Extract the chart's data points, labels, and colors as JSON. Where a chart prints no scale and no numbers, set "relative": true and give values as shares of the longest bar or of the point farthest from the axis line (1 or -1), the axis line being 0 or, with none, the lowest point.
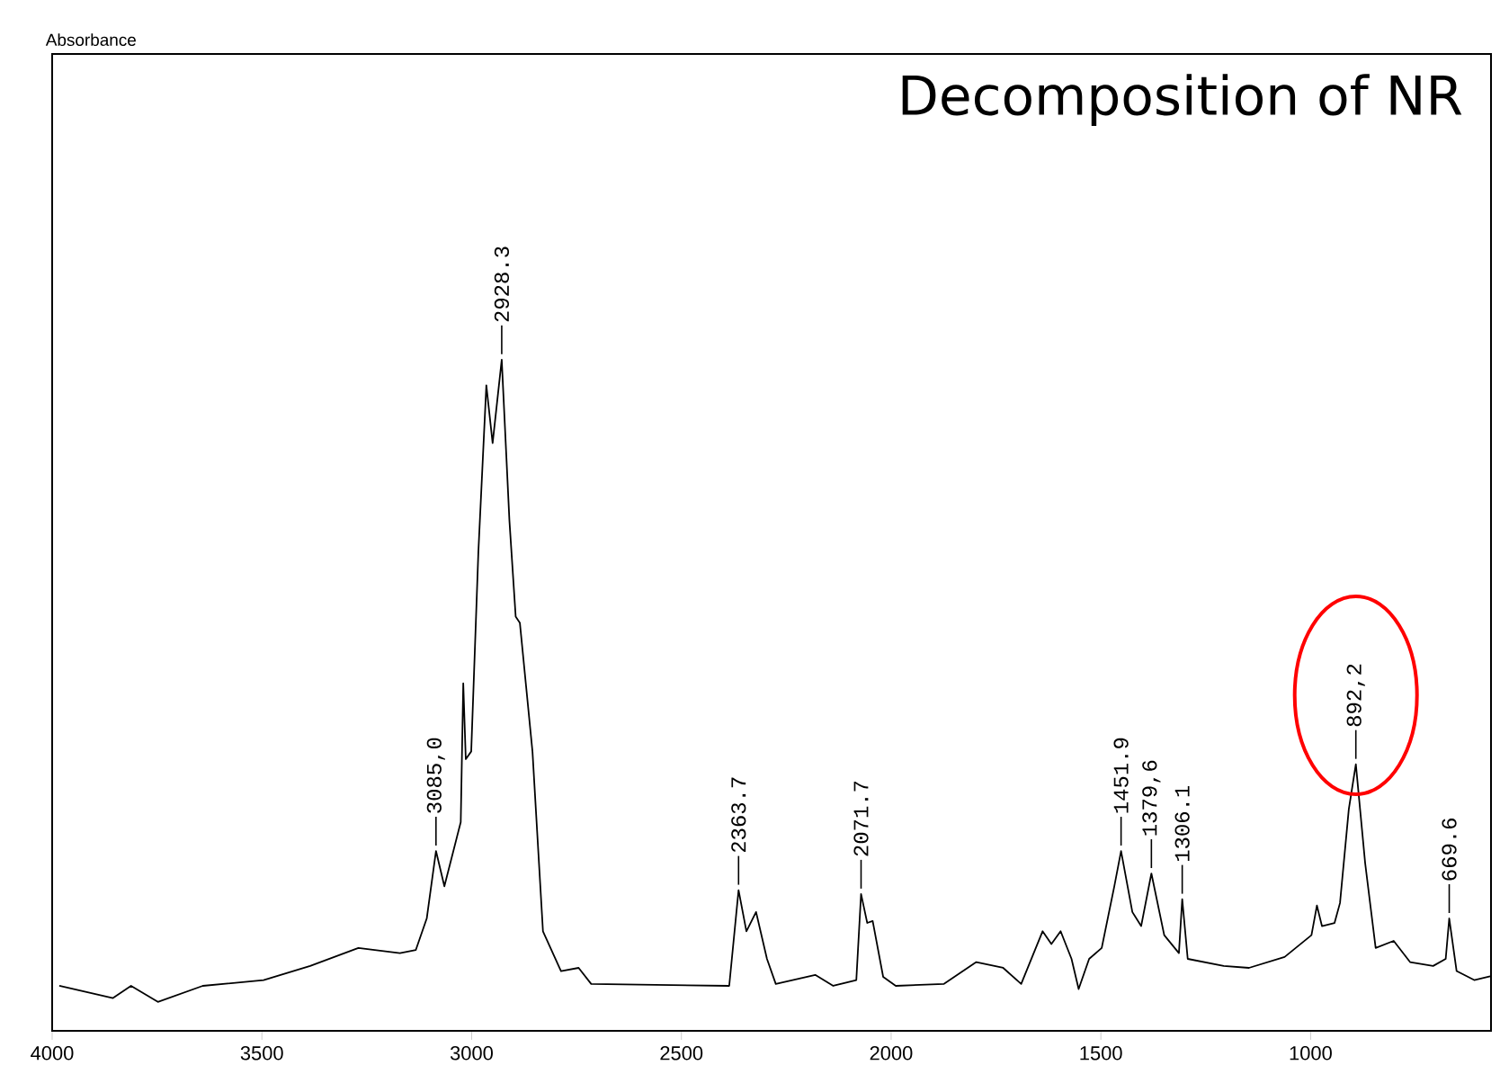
{
  "chart_data": {
    "type": "line",
    "title": "Decomposition of NR",
    "relative": true,
    "xlim": [
      4000,
      570
    ],
    "xticks": [
      4000,
      3500,
      3000,
      2500,
      2000,
      1500,
      1000
    ],
    "series": [
      {
        "color": "#000000",
        "x": [
          3983,
          3855,
          3812,
          3748,
          3641,
          3496,
          3385,
          3270,
          3171,
          3133,
          3107,
          3085.0,
          3065,
          3026,
          3020,
          3014,
          3001,
          2984,
          2965,
          2950,
          2928.3,
          2910,
          2895,
          2885,
          2855,
          2830,
          2787,
          2745,
          2715,
          2386,
          2363.7,
          2345,
          2322,
          2296,
          2275,
          2181,
          2138,
          2083,
          2071.7,
          2057,
          2044,
          2019,
          1989,
          1874,
          1797,
          1733,
          1690,
          1639,
          1618,
          1596,
          1570,
          1553,
          1528,
          1498,
          1468,
          1451.9,
          1425,
          1404,
          1379.6,
          1349,
          1314,
          1306.1,
          1293,
          1207,
          1147,
          1062,
          998,
          985,
          973,
          943,
          930,
          909,
          892.2,
          870,
          845,
          802,
          763,
          708,
          678,
          669.6,
          652,
          610,
          572
        ],
        "values": [
          0.025,
          0.006,
          0.025,
          0,
          0.025,
          0.034,
          0.056,
          0.084,
          0.076,
          0.081,
          0.13,
          0.235,
          0.18,
          0.28,
          0.496,
          0.378,
          0.39,
          0.7,
          0.96,
          0.87,
          1.0,
          0.75,
          0.6,
          0.59,
          0.39,
          0.11,
          0.048,
          0.053,
          0.028,
          0.025,
          0.174,
          0.11,
          0.14,
          0.067,
          0.028,
          0.042,
          0.025,
          0.034,
          0.168,
          0.123,
          0.126,
          0.039,
          0.025,
          0.028,
          0.062,
          0.053,
          0.028,
          0.11,
          0.09,
          0.11,
          0.067,
          0.02,
          0.067,
          0.084,
          0.18,
          0.235,
          0.14,
          0.118,
          0.2,
          0.104,
          0.076,
          0.16,
          0.067,
          0.056,
          0.053,
          0.07,
          0.104,
          0.15,
          0.118,
          0.123,
          0.154,
          0.3,
          0.37,
          0.216,
          0.084,
          0.095,
          0.062,
          0.056,
          0.067,
          0.13,
          0.048,
          0.034,
          0.04
        ]
      }
    ],
    "annotations": [
      {
        "text": "3085,0",
        "x": 3085.0,
        "y": 0.235
      },
      {
        "text": "2928.3",
        "x": 2928.3,
        "y": 1.0
      },
      {
        "text": "2363.7",
        "x": 2363.7,
        "y": 0.174
      },
      {
        "text": "2071.7",
        "x": 2071.7,
        "y": 0.168
      },
      {
        "text": "1451.9",
        "x": 1451.9,
        "y": 0.235
      },
      {
        "text": "1379,6",
        "x": 1379.6,
        "y": 0.2
      },
      {
        "text": "1306.1",
        "x": 1306.1,
        "y": 0.16
      },
      {
        "text": "892,2",
        "x": 892.2,
        "y": 0.37
      },
      {
        "text": "669.6",
        "x": 669.6,
        "y": 0.13
      },
      "Absorbance"
    ]
  }
}
